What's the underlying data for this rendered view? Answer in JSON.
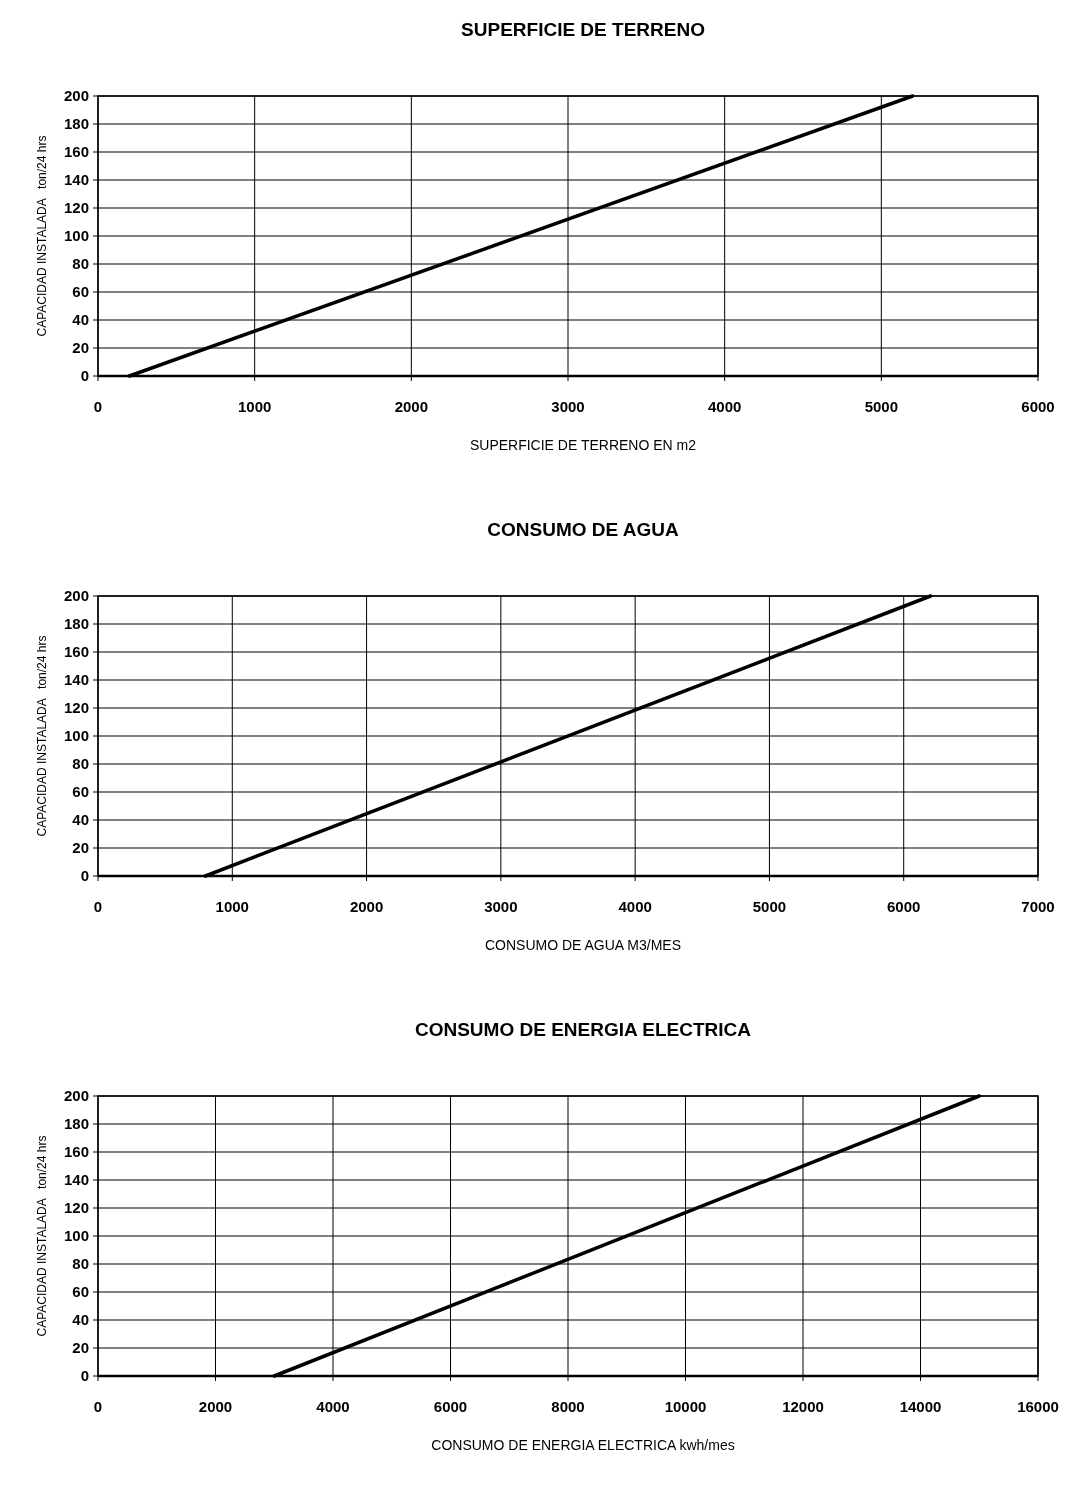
{
  "chart_data": [
    {
      "type": "line",
      "title": "SUPERFICIE DE TERRENO",
      "xlabel": "SUPERFICIE DE TERRENO EN m2",
      "ylabel": "CAPACIDAD INSTALADA   ton/24 hrs",
      "x": [
        200,
        5200
      ],
      "series": [
        {
          "color": "#000000",
          "values": [
            0,
            200
          ]
        }
      ],
      "xlim": [
        0,
        6000
      ],
      "xticks": [
        0,
        1000,
        2000,
        3000,
        4000,
        5000,
        6000
      ],
      "ylim": [
        0,
        200
      ],
      "yticks": [
        0,
        20,
        40,
        60,
        80,
        100,
        120,
        140,
        160,
        180,
        200
      ],
      "grid": true,
      "marker": "none",
      "line_style": "solid"
    },
    {
      "type": "line",
      "title": "CONSUMO DE AGUA",
      "xlabel": "CONSUMO DE AGUA M3/MES",
      "ylabel": "CAPACIDAD INSTALADA   ton/24 hrs",
      "x": [
        800,
        6200
      ],
      "series": [
        {
          "color": "#000000",
          "values": [
            0,
            200
          ]
        }
      ],
      "xlim": [
        0,
        7000
      ],
      "xticks": [
        0,
        1000,
        2000,
        3000,
        4000,
        5000,
        6000,
        7000
      ],
      "ylim": [
        0,
        200
      ],
      "yticks": [
        0,
        20,
        40,
        60,
        80,
        100,
        120,
        140,
        160,
        180,
        200
      ],
      "grid": true,
      "marker": "none",
      "line_style": "solid"
    },
    {
      "type": "line",
      "title": "CONSUMO DE ENERGIA ELECTRICA",
      "xlabel": "CONSUMO DE ENERGIA ELECTRICA kwh/mes",
      "ylabel": "CAPACIDAD INSTALADA   ton/24 hrs",
      "x": [
        3000,
        15000
      ],
      "series": [
        {
          "color": "#000000",
          "values": [
            0,
            200
          ]
        }
      ],
      "xlim": [
        0,
        16000
      ],
      "xticks": [
        0,
        2000,
        4000,
        6000,
        8000,
        10000,
        12000,
        14000,
        16000
      ],
      "ylim": [
        0,
        200
      ],
      "yticks": [
        0,
        20,
        40,
        60,
        80,
        100,
        120,
        140,
        160,
        180,
        200
      ],
      "grid": true,
      "marker": "none",
      "line_style": "solid"
    }
  ]
}
